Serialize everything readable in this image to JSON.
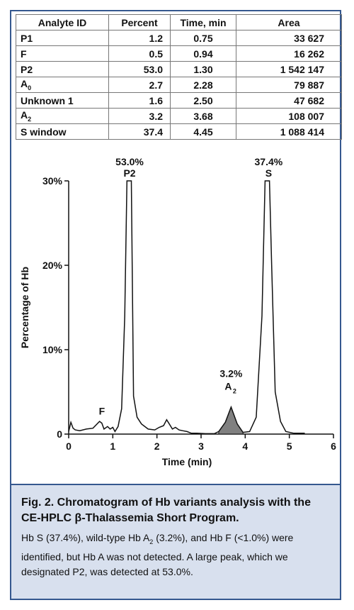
{
  "table": {
    "headers": [
      "Analyte ID",
      "Percent",
      "Time, min",
      "Area"
    ],
    "rows": [
      {
        "id": "P1",
        "id_sub": "",
        "percent": "1.2",
        "time": "0.75",
        "area": "33 627"
      },
      {
        "id": "F",
        "id_sub": "",
        "percent": "0.5",
        "time": "0.94",
        "area": "16 262"
      },
      {
        "id": "P2",
        "id_sub": "",
        "percent": "53.0",
        "time": "1.30",
        "area": "1 542 147"
      },
      {
        "id": "A",
        "id_sub": "0",
        "percent": "2.7",
        "time": "2.28",
        "area": "79 887"
      },
      {
        "id": "Unknown 1",
        "id_sub": "",
        "percent": "1.6",
        "time": "2.50",
        "area": "47 682"
      },
      {
        "id": "A",
        "id_sub": "2",
        "percent": "3.2",
        "time": "3.68",
        "area": "108 007"
      },
      {
        "id": "S window",
        "id_sub": "",
        "percent": "37.4",
        "time": "4.45",
        "area": "1 088 414"
      }
    ]
  },
  "chart_data": {
    "type": "line",
    "title": "",
    "xlabel": "Time (min)",
    "ylabel": "Percentage of Hb",
    "xlim": [
      0,
      6
    ],
    "ylim": [
      0,
      30
    ],
    "x_ticks": [
      "0",
      "1",
      "2",
      "3",
      "4",
      "5",
      "6"
    ],
    "y_ticks": [
      {
        "value": 0,
        "label": "0"
      },
      {
        "value": 10,
        "label": "10%"
      },
      {
        "value": 20,
        "label": "20%"
      },
      {
        "value": 30,
        "label": "30%"
      }
    ],
    "series": [
      {
        "x": [
          0,
          0.05,
          0.1,
          0.15,
          0.25,
          0.4,
          0.55,
          0.7,
          0.75,
          0.8,
          0.88,
          0.94,
          1.0,
          1.05,
          1.12,
          1.2,
          1.27,
          1.32,
          1.37,
          1.42,
          1.47,
          1.55,
          1.65,
          1.8,
          1.95,
          2.05,
          2.15,
          2.22,
          2.28,
          2.35,
          2.42,
          2.5,
          2.58,
          2.68,
          2.78,
          2.9,
          3.1,
          3.3,
          3.4,
          3.55,
          3.68,
          3.82,
          3.95,
          4.1,
          4.25,
          4.38,
          4.45,
          4.5,
          4.55,
          4.6,
          4.68,
          4.8,
          4.92,
          5.1,
          5.35
        ],
        "y": [
          0.3,
          1.4,
          0.7,
          0.5,
          0.4,
          0.6,
          0.7,
          1.5,
          1.3,
          0.6,
          0.9,
          0.6,
          0.8,
          0.3,
          0.9,
          3.0,
          14.0,
          30.0,
          30.0,
          30.0,
          4.5,
          2.0,
          1.2,
          0.6,
          0.5,
          0.8,
          1.0,
          1.7,
          1.2,
          0.6,
          0.8,
          0.5,
          0.4,
          0.3,
          0.1,
          0.1,
          0.05,
          0.05,
          0.3,
          1.4,
          3.2,
          1.2,
          0.2,
          0.3,
          2.0,
          14.0,
          30.0,
          30.0,
          30.0,
          20.0,
          5.0,
          1.5,
          0.3,
          0.1,
          0.1
        ]
      }
    ],
    "shaded_peak": {
      "label": "A2",
      "percent": "3.2%"
    },
    "annotations": [
      {
        "line1": "53.0%",
        "line2": "P2",
        "x": 1.38,
        "y": 30.0
      },
      {
        "line1": "37.4%",
        "line2": "S",
        "x": 4.53,
        "y": 30.0
      },
      {
        "line1": "",
        "line2": "F",
        "x": 0.88,
        "y": 1.3
      },
      {
        "line1": "3.2%",
        "line2": "A",
        "sub": "2",
        "x": 3.68,
        "y": 3.4
      }
    ]
  },
  "caption": {
    "title": "Fig. 2. Chromatogram of Hb variants analysis with the CE-HPLC β-Thalassemia Short Program.",
    "body_part1": "Hb S (37.4%), wild-type Hb A",
    "body_sub": "2",
    "body_part2": " (3.2%), and Hb F (<1.0%) were identified, but Hb A was not detected. A large peak, which we designated P2, was detected at 53.0%."
  },
  "colors": {
    "frame": "#35588f",
    "caption_bg": "#d8e0ee",
    "peak_fill": "#808080"
  }
}
